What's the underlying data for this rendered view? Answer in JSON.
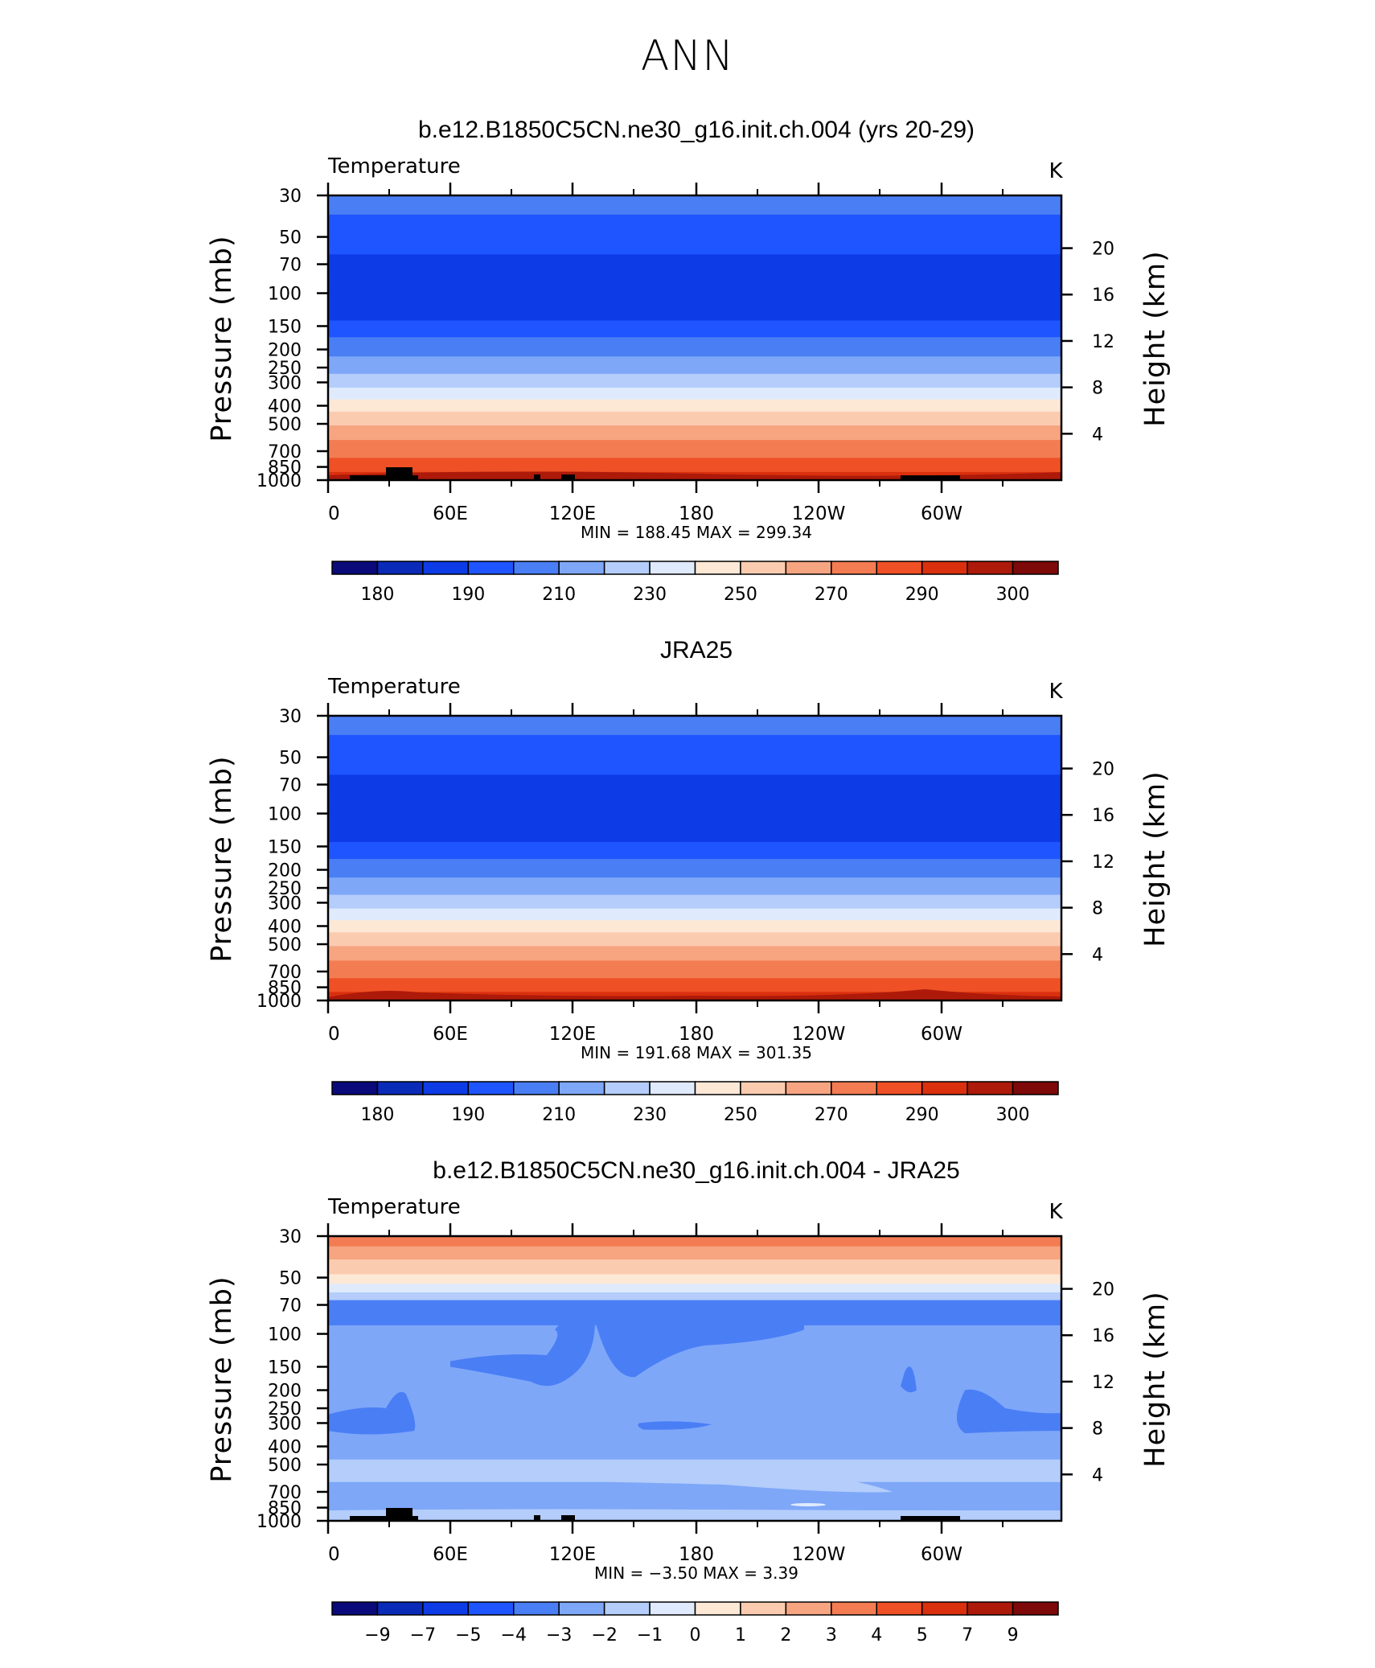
{
  "figure": {
    "title": "ANN",
    "background": "#ffffff"
  },
  "chart_data": [
    {
      "type": "heatmap",
      "title": "b.e12.B1850C5CN.ne30_g16.init.ch.004 (yrs 20-29)",
      "left_label": "Temperature",
      "units": "K",
      "ylabel": "Pressure (mb)",
      "y2label": "Height (km)",
      "x_ticks": [
        "0",
        "60E",
        "120E",
        "180",
        "120W",
        "60W"
      ],
      "y_ticks": [
        "30",
        "50",
        "70",
        "100",
        "150",
        "200",
        "250",
        "300",
        "400",
        "500",
        "700",
        "850",
        "1000"
      ],
      "y2_ticks": [
        "20",
        "16",
        "12",
        "8",
        "4"
      ],
      "ylim": [
        30,
        1000
      ],
      "y_scale": "log",
      "min_max_text": "MIN =  188.45   MAX =  299.34",
      "min": 188.45,
      "max": 299.34,
      "colorbar": {
        "labels": [
          "180",
          "190",
          "210",
          "230",
          "250",
          "270",
          "290",
          "300"
        ],
        "colors": [
          "#0a0a7a",
          "#0a2ab8",
          "#0d3be6",
          "#1f55ff",
          "#4a7ef5",
          "#7ea7f8",
          "#b4cdfb",
          "#dfeafd",
          "#fde8d6",
          "#fbcbb0",
          "#f7a481",
          "#f37c52",
          "#ef5025",
          "#da300e",
          "#ad1a0a",
          "#7d0909"
        ]
      },
      "profile": [
        {
          "p": 30,
          "level": 4
        },
        {
          "p": 38,
          "level": 3
        },
        {
          "p": 62,
          "level": 2
        },
        {
          "p": 140,
          "level": 3
        },
        {
          "p": 172,
          "level": 4
        },
        {
          "p": 218,
          "level": 5
        },
        {
          "p": 270,
          "level": 6
        },
        {
          "p": 320,
          "level": 7
        },
        {
          "p": 370,
          "level": 8
        },
        {
          "p": 430,
          "level": 9
        },
        {
          "p": 510,
          "level": 10
        },
        {
          "p": 610,
          "level": 11
        },
        {
          "p": 760,
          "level": 12
        },
        {
          "p": 905,
          "level": 13
        },
        {
          "p": 1000,
          "level": 13
        }
      ]
    },
    {
      "type": "heatmap",
      "title": "JRA25",
      "left_label": "Temperature",
      "units": "K",
      "ylabel": "Pressure (mb)",
      "y2label": "Height (km)",
      "x_ticks": [
        "0",
        "60E",
        "120E",
        "180",
        "120W",
        "60W"
      ],
      "y_ticks": [
        "30",
        "50",
        "70",
        "100",
        "150",
        "200",
        "250",
        "300",
        "400",
        "500",
        "700",
        "850",
        "1000"
      ],
      "y2_ticks": [
        "20",
        "16",
        "12",
        "8",
        "4"
      ],
      "ylim": [
        30,
        1000
      ],
      "y_scale": "log",
      "min_max_text": "MIN =  191.68   MAX =  301.35",
      "min": 191.68,
      "max": 301.35,
      "colorbar": {
        "labels": [
          "180",
          "190",
          "210",
          "230",
          "250",
          "270",
          "290",
          "300"
        ],
        "colors": [
          "#0a0a7a",
          "#0a2ab8",
          "#0d3be6",
          "#1f55ff",
          "#4a7ef5",
          "#7ea7f8",
          "#b4cdfb",
          "#dfeafd",
          "#fde8d6",
          "#fbcbb0",
          "#f7a481",
          "#f37c52",
          "#ef5025",
          "#da300e",
          "#ad1a0a",
          "#7d0909"
        ]
      },
      "profile": [
        {
          "p": 30,
          "level": 4
        },
        {
          "p": 38,
          "level": 3
        },
        {
          "p": 62,
          "level": 2
        },
        {
          "p": 142,
          "level": 3
        },
        {
          "p": 175,
          "level": 4
        },
        {
          "p": 220,
          "level": 5
        },
        {
          "p": 272,
          "level": 6
        },
        {
          "p": 322,
          "level": 7
        },
        {
          "p": 372,
          "level": 8
        },
        {
          "p": 432,
          "level": 9
        },
        {
          "p": 512,
          "level": 10
        },
        {
          "p": 612,
          "level": 11
        },
        {
          "p": 760,
          "level": 12
        },
        {
          "p": 900,
          "level": 13
        },
        {
          "p": 975,
          "level": 14
        },
        {
          "p": 1000,
          "level": 14
        }
      ]
    },
    {
      "type": "heatmap",
      "title": "b.e12.B1850C5CN.ne30_g16.init.ch.004 - JRA25",
      "left_label": "Temperature",
      "units": "K",
      "ylabel": "Pressure (mb)",
      "y2label": "Height (km)",
      "x_ticks": [
        "0",
        "60E",
        "120E",
        "180",
        "120W",
        "60W"
      ],
      "y_ticks": [
        "30",
        "50",
        "70",
        "100",
        "150",
        "200",
        "250",
        "300",
        "400",
        "500",
        "700",
        "850",
        "1000"
      ],
      "y2_ticks": [
        "20",
        "16",
        "12",
        "8",
        "4"
      ],
      "ylim": [
        30,
        1000
      ],
      "y_scale": "log",
      "min_max_text": "MIN =   −3.50   MAX =     3.39",
      "min": -3.5,
      "max": 3.39,
      "colorbar": {
        "labels": [
          "−9",
          "−7",
          "−5",
          "−4",
          "−3",
          "−2",
          "−1",
          "0",
          "1",
          "2",
          "3",
          "4",
          "5",
          "7",
          "9"
        ],
        "colors": [
          "#0a0a7a",
          "#0a2ab8",
          "#0d3be6",
          "#1f55ff",
          "#4a7ef5",
          "#7ea7f8",
          "#b4cdfb",
          "#dfeafd",
          "#fde8d6",
          "#fbcbb0",
          "#f7a481",
          "#f37c52",
          "#ef5025",
          "#da300e",
          "#ad1a0a",
          "#7d0909"
        ]
      },
      "profile": [
        {
          "p": 30,
          "level": 11
        },
        {
          "p": 34,
          "level": 10
        },
        {
          "p": 40,
          "level": 9
        },
        {
          "p": 48,
          "level": 8
        },
        {
          "p": 54,
          "level": 7
        },
        {
          "p": 60,
          "level": 6
        },
        {
          "p": 66,
          "level": 4
        },
        {
          "p": 90,
          "level": 5
        },
        {
          "p": 320,
          "level": 5
        },
        {
          "p": 470,
          "level": 6
        },
        {
          "p": 620,
          "level": 5
        },
        {
          "p": 880,
          "level": 6
        },
        {
          "p": 1000,
          "level": 6
        }
      ]
    }
  ]
}
